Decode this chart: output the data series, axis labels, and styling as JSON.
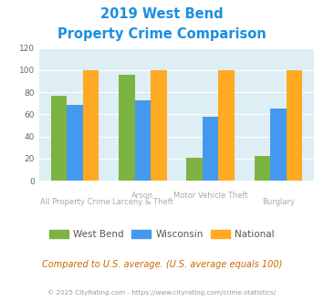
{
  "title_line1": "2019 West Bend",
  "title_line2": "Property Crime Comparison",
  "title_color": "#1a8fe0",
  "west_bend": [
    77,
    96,
    21,
    22
  ],
  "wisconsin": [
    69,
    73,
    58,
    65
  ],
  "national": [
    100,
    100,
    100,
    100
  ],
  "west_bend_color": "#7cb342",
  "wisconsin_color": "#4499ee",
  "national_color": "#ffaa22",
  "ylim": [
    0,
    120
  ],
  "yticks": [
    0,
    20,
    40,
    60,
    80,
    100,
    120
  ],
  "plot_bg": "#ddeef5",
  "top_labels": [
    "",
    "Arson",
    "Motor Vehicle Theft",
    ""
  ],
  "bottom_labels": [
    "All Property Crime",
    "Larceny & Theft",
    "",
    "Burglary"
  ],
  "label_color": "#aaaaaa",
  "legend_labels": [
    "West Bend",
    "Wisconsin",
    "National"
  ],
  "footer_text": "Compared to U.S. average. (U.S. average equals 100)",
  "footer_color": "#cc6600",
  "copyright_text": "© 2025 CityRating.com - https://www.cityrating.com/crime-statistics/",
  "copyright_color": "#999999"
}
